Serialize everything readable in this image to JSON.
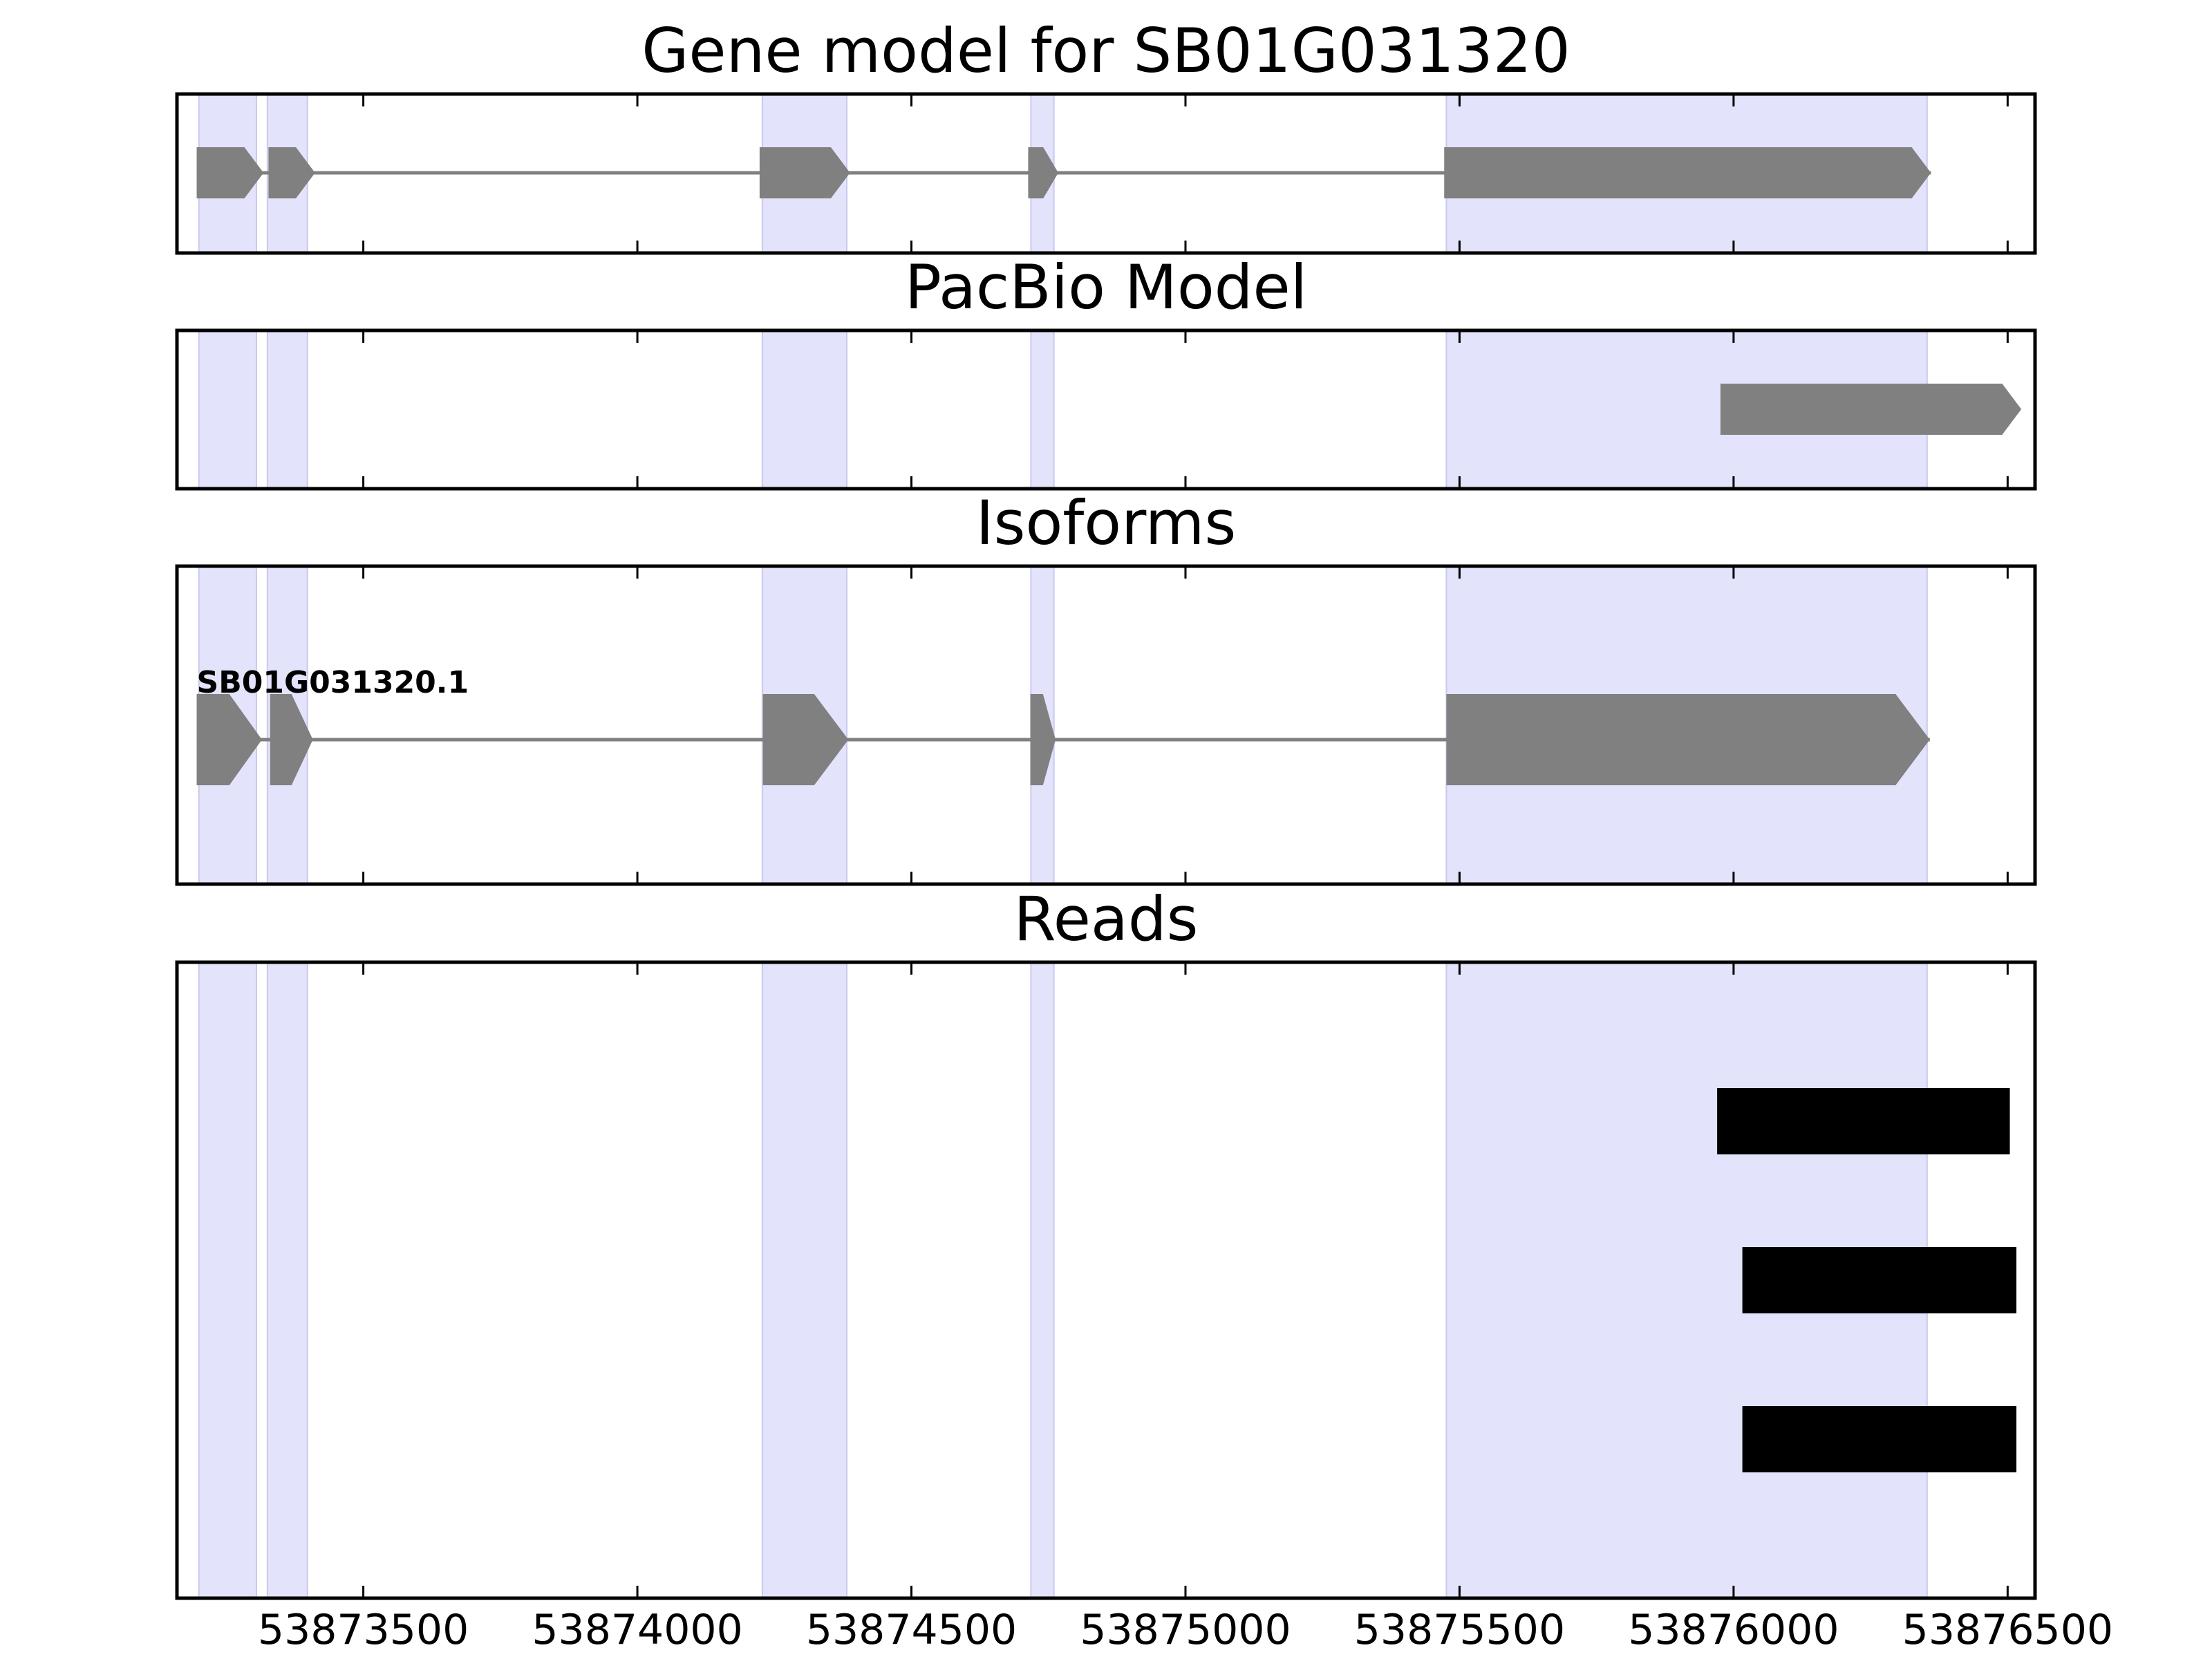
{
  "chart_data": {
    "type": "gene-model",
    "x_axis": {
      "range": [
        53873160,
        53876550
      ],
      "ticks": [
        {
          "value": 53873500,
          "label": "53873500"
        },
        {
          "value": 53874000,
          "label": "53874000"
        },
        {
          "value": 53874500,
          "label": "53874500"
        },
        {
          "value": 53875000,
          "label": "53875000"
        },
        {
          "value": 53875500,
          "label": "53875500"
        },
        {
          "value": 53876000,
          "label": "53876000"
        },
        {
          "value": 53876500,
          "label": "53876500"
        }
      ]
    },
    "exon_highlights": [
      [
        53873200,
        53873305
      ],
      [
        53873325,
        53873398
      ],
      [
        53874228,
        53874382
      ],
      [
        53874718,
        53874760
      ],
      [
        53875476,
        53876353
      ]
    ],
    "panels": [
      {
        "title": "Gene model for SB01G031320",
        "tracks": [
          {
            "label": "",
            "intron_line": [
              53873196,
              53876360
            ],
            "exons": [
              [
                53873196,
                53873318
              ],
              [
                53873327,
                53873412
              ],
              [
                53874223,
                53874388
              ],
              [
                53874713,
                53874768
              ],
              [
                53875472,
                53876360
              ]
            ]
          }
        ]
      },
      {
        "title": "PacBio Model",
        "tracks": [
          {
            "label": "",
            "intron_line": null,
            "exons": [
              [
                53875976,
                53876525
              ]
            ]
          }
        ]
      },
      {
        "title": "Isoforms",
        "tracks": [
          {
            "label": "SB01G031320.1",
            "intron_line": [
              53873196,
              53876358
            ],
            "exons": [
              [
                53873196,
                53873315
              ],
              [
                53873330,
                53873408
              ],
              [
                53874229,
                53874385
              ],
              [
                53874717,
                53874763
              ],
              [
                53875476,
                53876358
              ]
            ]
          }
        ]
      },
      {
        "title": "Reads",
        "tracks": [
          {
            "label": "",
            "intron_line": null,
            "exons": [
              [
                53875970,
                53876504
              ]
            ]
          },
          {
            "label": "",
            "intron_line": null,
            "exons": [
              [
                53876016,
                53876516
              ]
            ]
          },
          {
            "label": "",
            "intron_line": null,
            "exons": [
              [
                53876016,
                53876516
              ]
            ]
          }
        ]
      }
    ],
    "colors": {
      "exon_gene": "#808080",
      "exon_read": "#000000",
      "highlight": "#e3e3fb",
      "highlight_edge": "#c9c9ee",
      "intron": "#808080",
      "axes": "#000000"
    }
  }
}
